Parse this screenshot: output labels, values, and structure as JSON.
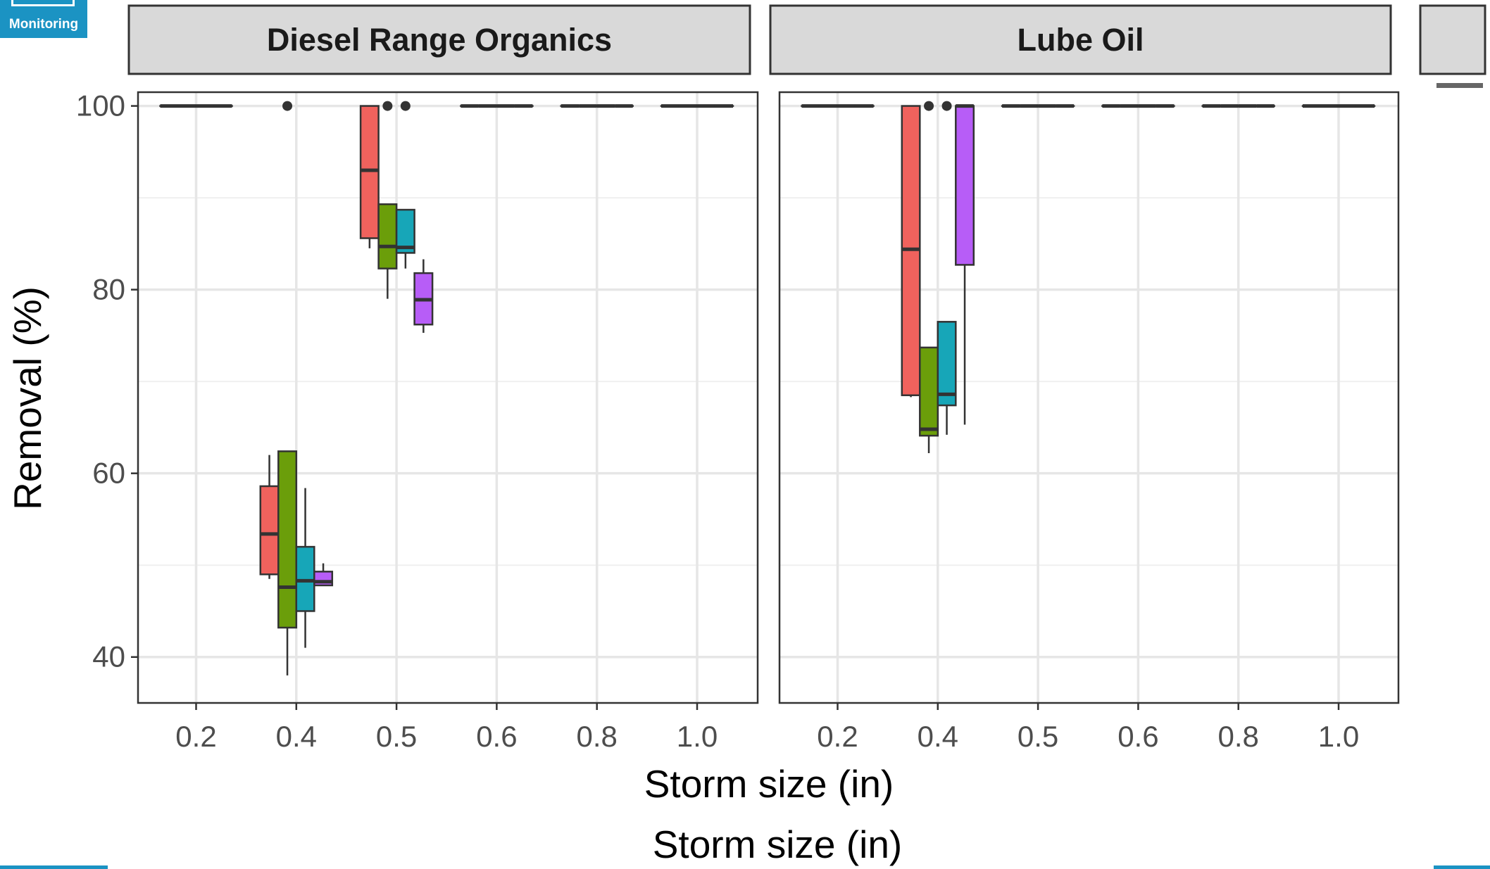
{
  "badge": {
    "label": "Monitoring"
  },
  "chart_data": {
    "type": "boxplot",
    "ylabel": "Removal (%)",
    "xlabel": "Storm size (in)",
    "xlabel_repeat": "Storm size (in)",
    "ylim": [
      35,
      101.5
    ],
    "y_ticks": [
      "40",
      "60",
      "80",
      "100"
    ],
    "x_tick_labels": [
      "0.2",
      "0.4",
      "0.5",
      "0.6",
      "0.8",
      "1.0"
    ],
    "grid": true,
    "series_colors": [
      "#f0625d",
      "#6b9e0a",
      "#17a6b8",
      "#b75df7"
    ],
    "panels": [
      {
        "name": "Diesel Range Organics",
        "groups": [
          {
            "x": "0.2",
            "boxes": [
              {
                "min": 100,
                "q1": 100,
                "median": 100,
                "q3": 100,
                "max": 100
              },
              {
                "min": 100,
                "q1": 100,
                "median": 100,
                "q3": 100,
                "max": 100
              },
              {
                "min": 100,
                "q1": 100,
                "median": 100,
                "q3": 100,
                "max": 100
              },
              {
                "min": 100,
                "q1": 100,
                "median": 100,
                "q3": 100,
                "max": 100
              }
            ]
          },
          {
            "x": "0.4",
            "boxes": [
              {
                "min": 48.5,
                "q1": 49,
                "median": 53.4,
                "q3": 58.6,
                "max": 62
              },
              {
                "min": 38,
                "q1": 43.2,
                "median": 47.6,
                "q3": 62.4,
                "max": 62.4,
                "outliers": [
                  100
                ]
              },
              {
                "min": 41,
                "q1": 45,
                "median": 48.3,
                "q3": 52,
                "max": 58.4
              },
              {
                "min": 47.8,
                "q1": 47.8,
                "median": 48.2,
                "q3": 49.3,
                "max": 50.2
              }
            ]
          },
          {
            "x": "0.5",
            "boxes": [
              {
                "min": 84.5,
                "q1": 85.6,
                "median": 93,
                "q3": 100,
                "max": 100
              },
              {
                "min": 79,
                "q1": 82.3,
                "median": 84.7,
                "q3": 89.3,
                "max": 89.3,
                "outliers": [
                  100
                ]
              },
              {
                "min": 82.3,
                "q1": 84,
                "median": 84.6,
                "q3": 88.7,
                "max": 88.7,
                "outliers": [
                  100
                ]
              },
              {
                "min": 75.3,
                "q1": 76.2,
                "median": 78.9,
                "q3": 81.8,
                "max": 83.3
              }
            ]
          },
          {
            "x": "0.6",
            "boxes": [
              {
                "min": 100,
                "q1": 100,
                "median": 100,
                "q3": 100,
                "max": 100
              },
              {
                "min": 100,
                "q1": 100,
                "median": 100,
                "q3": 100,
                "max": 100
              },
              {
                "min": 100,
                "q1": 100,
                "median": 100,
                "q3": 100,
                "max": 100
              },
              {
                "min": 100,
                "q1": 100,
                "median": 100,
                "q3": 100,
                "max": 100
              }
            ]
          },
          {
            "x": "0.8",
            "boxes": [
              {
                "min": 100,
                "q1": 100,
                "median": 100,
                "q3": 100,
                "max": 100
              },
              {
                "min": 100,
                "q1": 100,
                "median": 100,
                "q3": 100,
                "max": 100
              },
              {
                "min": 100,
                "q1": 100,
                "median": 100,
                "q3": 100,
                "max": 100
              },
              {
                "min": 100,
                "q1": 100,
                "median": 100,
                "q3": 100,
                "max": 100
              }
            ]
          },
          {
            "x": "1.0",
            "boxes": [
              {
                "min": 100,
                "q1": 100,
                "median": 100,
                "q3": 100,
                "max": 100
              },
              {
                "min": 100,
                "q1": 100,
                "median": 100,
                "q3": 100,
                "max": 100
              },
              {
                "min": 100,
                "q1": 100,
                "median": 100,
                "q3": 100,
                "max": 100
              },
              {
                "min": 100,
                "q1": 100,
                "median": 100,
                "q3": 100,
                "max": 100
              }
            ]
          }
        ]
      },
      {
        "name": "Lube Oil",
        "groups": [
          {
            "x": "0.2",
            "boxes": [
              {
                "min": 100,
                "q1": 100,
                "median": 100,
                "q3": 100,
                "max": 100
              },
              {
                "min": 100,
                "q1": 100,
                "median": 100,
                "q3": 100,
                "max": 100
              },
              {
                "min": 100,
                "q1": 100,
                "median": 100,
                "q3": 100,
                "max": 100
              },
              {
                "min": 100,
                "q1": 100,
                "median": 100,
                "q3": 100,
                "max": 100
              }
            ]
          },
          {
            "x": "0.4",
            "boxes": [
              {
                "min": 68.3,
                "q1": 68.5,
                "median": 84.4,
                "q3": 100,
                "max": 100
              },
              {
                "min": 62.2,
                "q1": 64.1,
                "median": 64.8,
                "q3": 73.7,
                "max": 73.7,
                "outliers": [
                  100
                ]
              },
              {
                "min": 64.2,
                "q1": 67.4,
                "median": 68.6,
                "q3": 76.5,
                "max": 76.5,
                "outliers": [
                  100
                ]
              },
              {
                "min": 65.3,
                "q1": 82.7,
                "median": 100,
                "q3": 100,
                "max": 100
              }
            ]
          },
          {
            "x": "0.5",
            "boxes": [
              {
                "min": 100,
                "q1": 100,
                "median": 100,
                "q3": 100,
                "max": 100
              },
              {
                "min": 100,
                "q1": 100,
                "median": 100,
                "q3": 100,
                "max": 100
              },
              {
                "min": 100,
                "q1": 100,
                "median": 100,
                "q3": 100,
                "max": 100
              },
              {
                "min": 100,
                "q1": 100,
                "median": 100,
                "q3": 100,
                "max": 100
              }
            ]
          },
          {
            "x": "0.6",
            "boxes": [
              {
                "min": 100,
                "q1": 100,
                "median": 100,
                "q3": 100,
                "max": 100
              },
              {
                "min": 100,
                "q1": 100,
                "median": 100,
                "q3": 100,
                "max": 100
              },
              {
                "min": 100,
                "q1": 100,
                "median": 100,
                "q3": 100,
                "max": 100
              },
              {
                "min": 100,
                "q1": 100,
                "median": 100,
                "q3": 100,
                "max": 100
              }
            ]
          },
          {
            "x": "0.8",
            "boxes": [
              {
                "min": 100,
                "q1": 100,
                "median": 100,
                "q3": 100,
                "max": 100
              },
              {
                "min": 100,
                "q1": 100,
                "median": 100,
                "q3": 100,
                "max": 100
              },
              {
                "min": 100,
                "q1": 100,
                "median": 100,
                "q3": 100,
                "max": 100
              },
              {
                "min": 100,
                "q1": 100,
                "median": 100,
                "q3": 100,
                "max": 100
              }
            ]
          },
          {
            "x": "1.0",
            "boxes": [
              {
                "min": 100,
                "q1": 100,
                "median": 100,
                "q3": 100,
                "max": 100
              },
              {
                "min": 100,
                "q1": 100,
                "median": 100,
                "q3": 100,
                "max": 100
              },
              {
                "min": 100,
                "q1": 100,
                "median": 100,
                "q3": 100,
                "max": 100
              },
              {
                "min": 100,
                "q1": 100,
                "median": 100,
                "q3": 100,
                "max": 100
              }
            ]
          }
        ]
      }
    ]
  }
}
